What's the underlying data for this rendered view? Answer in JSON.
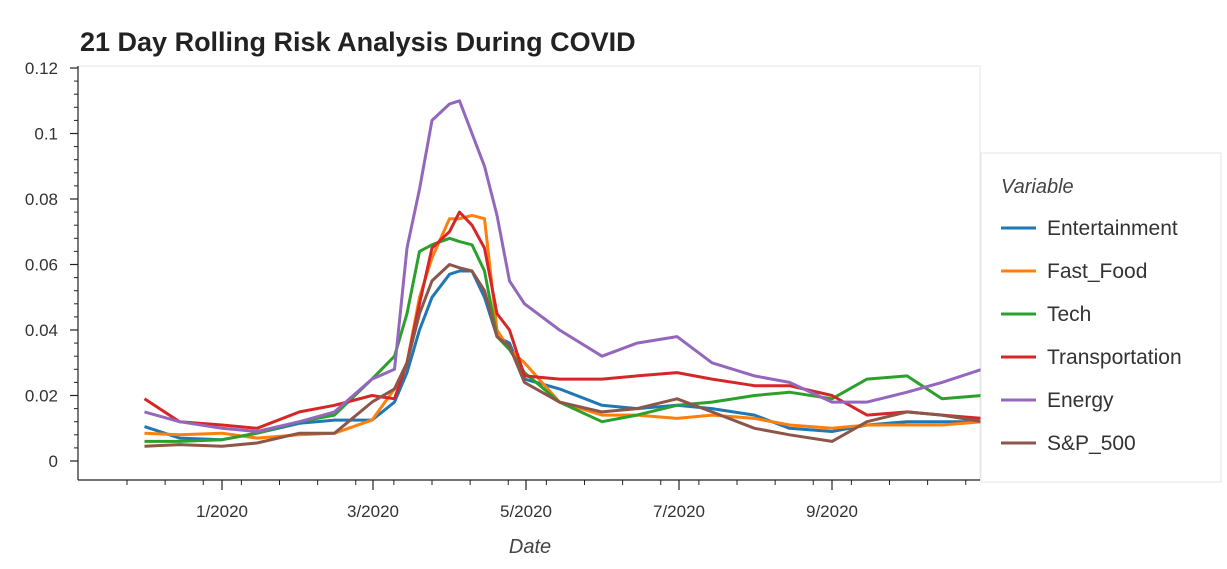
{
  "chart_data": {
    "type": "line",
    "title": "21 Day Rolling Risk Analysis During COVID",
    "xlabel": "Date",
    "ylabel": "",
    "x_ticks": [
      "1/2020",
      "3/2020",
      "5/2020",
      "7/2020",
      "9/2020"
    ],
    "y_ticks": [
      "0",
      "0.02",
      "0.04",
      "0.06",
      "0.08",
      "0.1",
      "0.12"
    ],
    "ylim": [
      -0.006,
      0.12
    ],
    "xlim": [
      "2019-11-20",
      "2020-10-31"
    ],
    "legend": {
      "title": "Variable",
      "placement": "right"
    },
    "x": [
      "2019-12-01",
      "2019-12-15",
      "2020-01-01",
      "2020-01-15",
      "2020-02-01",
      "2020-02-15",
      "2020-03-01",
      "2020-03-10",
      "2020-03-15",
      "2020-03-20",
      "2020-03-25",
      "2020-04-01",
      "2020-04-05",
      "2020-04-10",
      "2020-04-15",
      "2020-04-20",
      "2020-04-25",
      "2020-05-01",
      "2020-05-15",
      "2020-06-01",
      "2020-06-15",
      "2020-07-01",
      "2020-07-15",
      "2020-08-01",
      "2020-08-15",
      "2020-09-01",
      "2020-09-15",
      "2020-10-01",
      "2020-10-15",
      "2020-10-31"
    ],
    "series": [
      {
        "name": "Entertainment",
        "color": "#1f77b4",
        "values": [
          0.0105,
          0.007,
          0.0065,
          0.0085,
          0.0115,
          0.0125,
          0.0125,
          0.018,
          0.027,
          0.04,
          0.05,
          0.057,
          0.058,
          0.058,
          0.05,
          0.038,
          0.036,
          0.025,
          0.022,
          0.017,
          0.016,
          0.017,
          0.016,
          0.014,
          0.01,
          0.009,
          0.011,
          0.012,
          0.012,
          0.012
        ]
      },
      {
        "name": "Fast_Food",
        "color": "#ff7f0e",
        "values": [
          0.0085,
          0.008,
          0.0085,
          0.007,
          0.008,
          0.0085,
          0.0125,
          0.022,
          0.03,
          0.05,
          0.062,
          0.074,
          0.074,
          0.075,
          0.074,
          0.04,
          0.034,
          0.03,
          0.018,
          0.014,
          0.014,
          0.013,
          0.014,
          0.013,
          0.011,
          0.01,
          0.011,
          0.011,
          0.011,
          0.012
        ]
      },
      {
        "name": "Tech",
        "color": "#2ca02c",
        "values": [
          0.006,
          0.006,
          0.0065,
          0.0085,
          0.012,
          0.014,
          0.025,
          0.032,
          0.045,
          0.064,
          0.066,
          0.068,
          0.067,
          0.066,
          0.058,
          0.038,
          0.034,
          0.027,
          0.018,
          0.012,
          0.014,
          0.017,
          0.018,
          0.02,
          0.021,
          0.019,
          0.025,
          0.026,
          0.019,
          0.02
        ]
      },
      {
        "name": "Transportation",
        "color": "#d62728",
        "values": [
          0.019,
          0.012,
          0.011,
          0.01,
          0.015,
          0.017,
          0.02,
          0.019,
          0.03,
          0.048,
          0.065,
          0.07,
          0.076,
          0.072,
          0.065,
          0.045,
          0.04,
          0.026,
          0.025,
          0.025,
          0.026,
          0.027,
          0.025,
          0.023,
          0.023,
          0.02,
          0.014,
          0.015,
          0.014,
          0.013
        ]
      },
      {
        "name": "Energy",
        "color": "#9467bd",
        "values": [
          0.015,
          0.012,
          0.01,
          0.009,
          0.012,
          0.015,
          0.025,
          0.028,
          0.065,
          0.083,
          0.104,
          0.109,
          0.11,
          0.1,
          0.09,
          0.075,
          0.055,
          0.048,
          0.04,
          0.032,
          0.036,
          0.038,
          0.03,
          0.026,
          0.024,
          0.018,
          0.018,
          0.021,
          0.024,
          0.028
        ]
      },
      {
        "name": "S&P_500",
        "color": "#8c564b",
        "values": [
          0.0045,
          0.005,
          0.0045,
          0.0055,
          0.0085,
          0.0085,
          0.018,
          0.022,
          0.03,
          0.045,
          0.055,
          0.06,
          0.059,
          0.058,
          0.052,
          0.038,
          0.035,
          0.024,
          0.018,
          0.015,
          0.016,
          0.019,
          0.015,
          0.01,
          0.008,
          0.006,
          0.012,
          0.015,
          0.014,
          0.012
        ]
      }
    ]
  }
}
